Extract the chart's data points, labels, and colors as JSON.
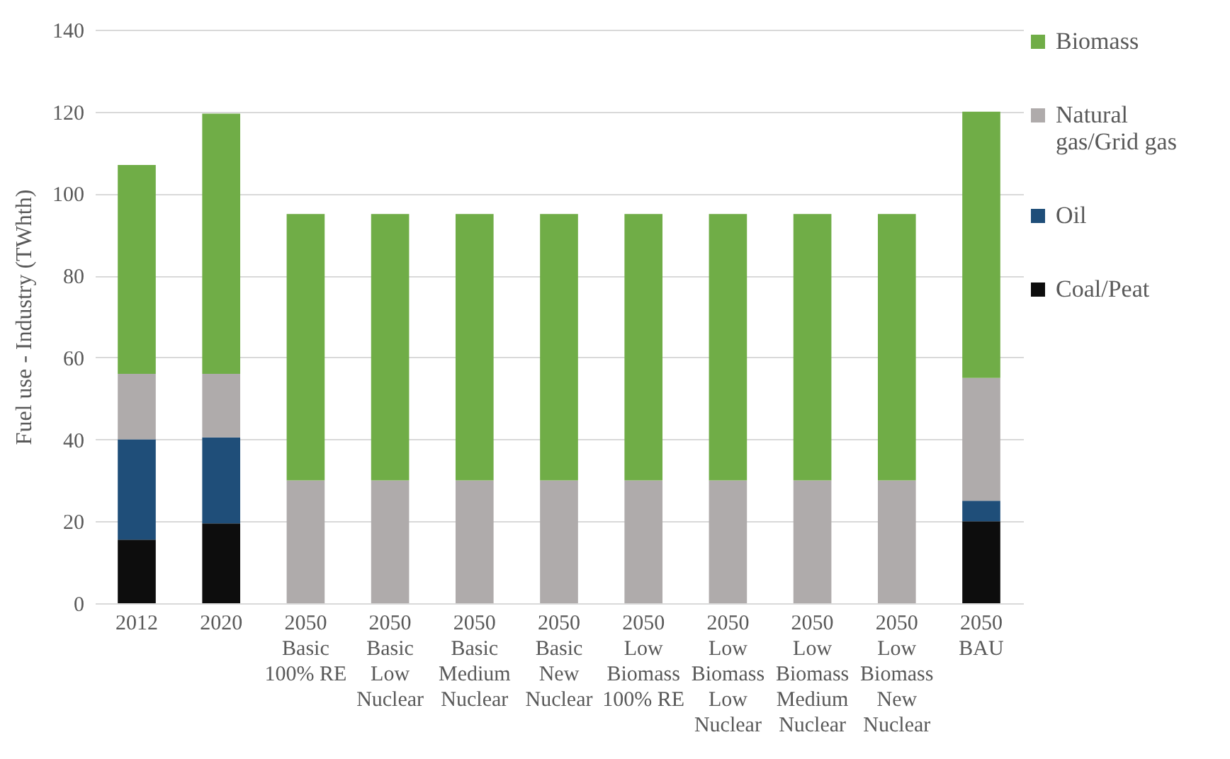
{
  "chart_data": {
    "type": "bar",
    "stacked": true,
    "ylabel": "Fuel use - Industry (TWhth)",
    "categories": [
      "2012",
      "2020",
      "2050\nBasic\n100% RE",
      "2050\nBasic\nLow\nNuclear",
      "2050\nBasic\nMedium\nNuclear",
      "2050\nBasic\nNew\nNuclear",
      "2050\nLow\nBiomass\n100% RE",
      "2050\nLow\nBiomass\nLow\nNuclear",
      "2050\nLow\nBiomass\nMedium\nNuclear",
      "2050\nLow\nBiomass\nNew\nNuclear",
      "2050\nBAU"
    ],
    "series": [
      {
        "name": "Coal/Peat",
        "color": "#0d0d0d",
        "values": [
          15.5,
          19.5,
          0,
          0,
          0,
          0,
          0,
          0,
          0,
          0,
          20
        ]
      },
      {
        "name": "Oil",
        "color": "#1f4e79",
        "values": [
          24.5,
          21,
          0,
          0,
          0,
          0,
          0,
          0,
          0,
          0,
          5
        ]
      },
      {
        "name": "Natural\ngas/Grid gas",
        "color": "#afabab",
        "values": [
          16,
          15.5,
          30,
          30,
          30,
          30,
          30,
          30,
          30,
          30,
          30
        ]
      },
      {
        "name": "Biomass",
        "color": "#70ad47",
        "values": [
          51,
          63.5,
          65,
          65,
          65,
          65,
          65,
          65,
          65,
          65,
          65
        ]
      }
    ],
    "ylim": [
      0,
      140
    ],
    "yticks": [
      0,
      20,
      40,
      60,
      80,
      100,
      120,
      140
    ],
    "grid": "y",
    "legend": "right"
  }
}
